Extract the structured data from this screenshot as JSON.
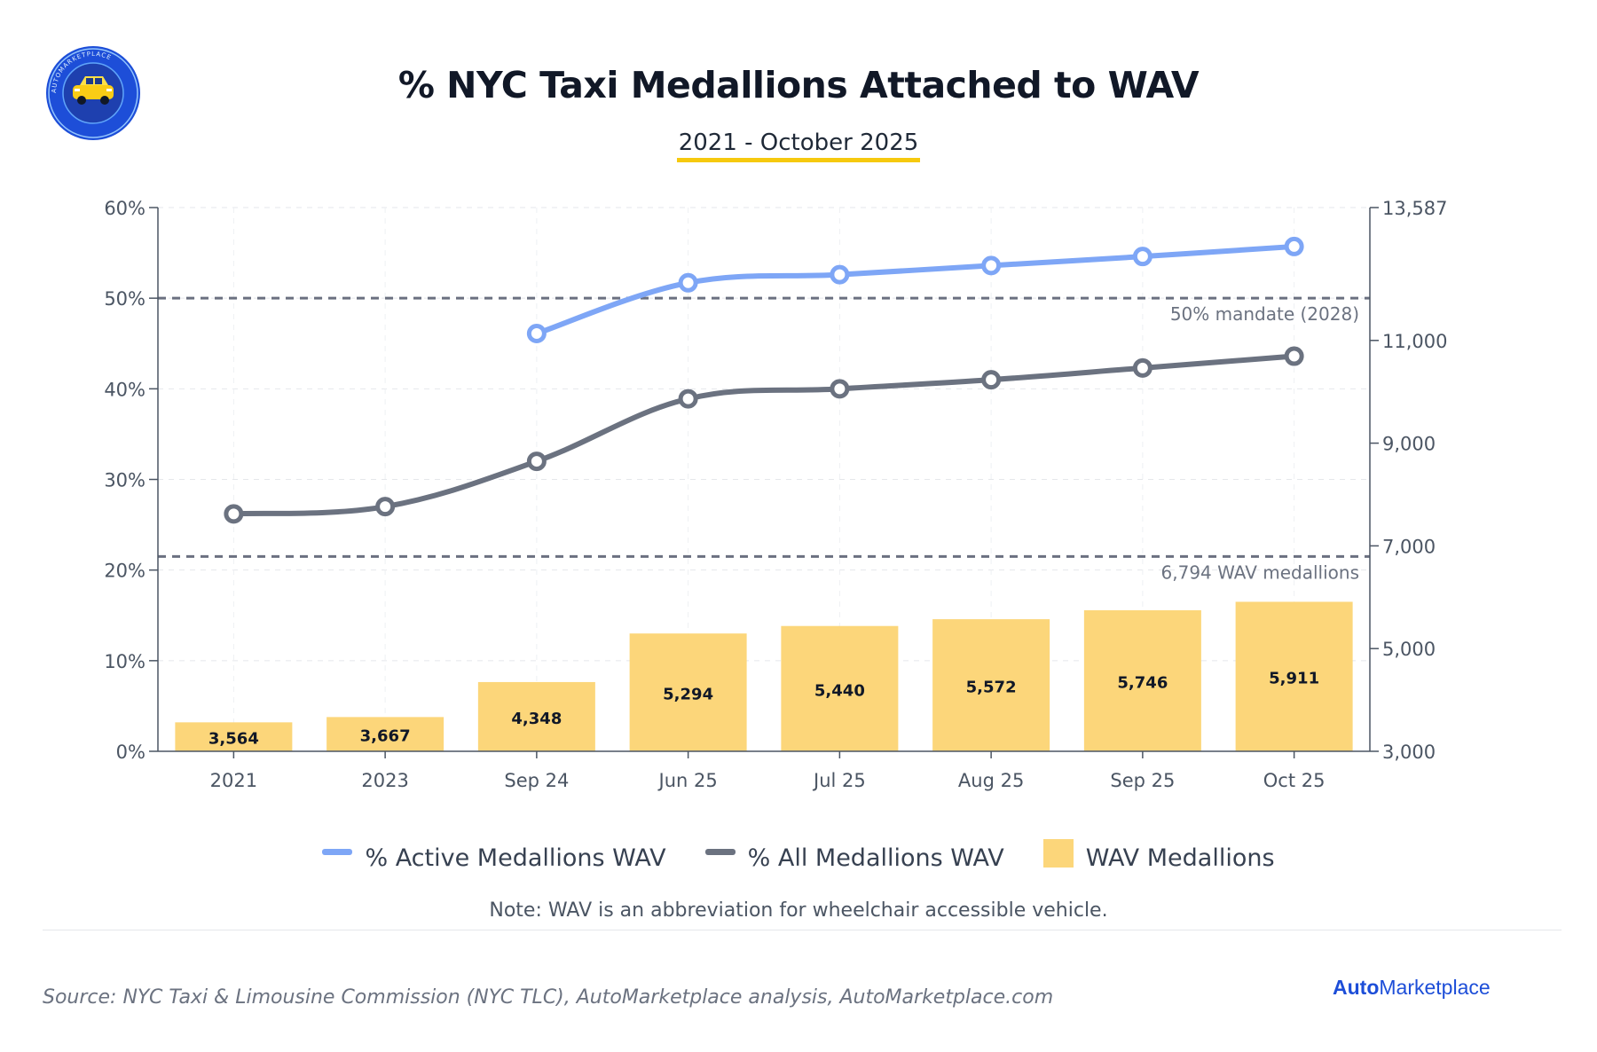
{
  "header": {
    "title": "% NYC Taxi Medallions Attached to WAV",
    "subtitle": "2021 - October 2025",
    "logo_text": "AUTOMARKETPLACE"
  },
  "colors": {
    "active_line": "#7ea6f6",
    "all_line": "#6b7280",
    "bars": "#fcd67a",
    "reference_line": "#6b7080",
    "subtitle_underline": "#f6c90e",
    "brand_blue": "#1d4ed8"
  },
  "chart_data": {
    "type": "bar+line",
    "categories": [
      "2021",
      "2023",
      "Sep 24",
      "Jun 25",
      "Jul 25",
      "Aug 25",
      "Sep 25",
      "Oct 25"
    ],
    "left_axis": {
      "range": [
        0,
        60
      ],
      "ticks": [
        "0%",
        "10%",
        "20%",
        "30%",
        "40%",
        "50%",
        "60%"
      ],
      "tick_values": [
        0,
        10,
        20,
        30,
        40,
        50,
        60
      ]
    },
    "right_axis": {
      "range": [
        3000,
        13587
      ],
      "ticks": [
        "3,000",
        "5,000",
        "7,000",
        "9,000",
        "11,000",
        "13,587"
      ],
      "tick_values": [
        3000,
        5000,
        7000,
        9000,
        11000,
        13587
      ]
    },
    "series": [
      {
        "name": "% Active Medallions WAV",
        "kind": "line",
        "axis": "left",
        "values": [
          null,
          null,
          46.1,
          51.7,
          52.6,
          53.6,
          54.6,
          55.7
        ]
      },
      {
        "name": "% All Medallions WAV",
        "kind": "line",
        "axis": "left",
        "values": [
          26.2,
          27.0,
          32.0,
          38.9,
          40.0,
          41.0,
          42.3,
          43.6
        ]
      },
      {
        "name": "WAV Medallions",
        "kind": "bar",
        "axis": "right",
        "values": [
          3564,
          3667,
          4348,
          5294,
          5440,
          5572,
          5746,
          5911
        ],
        "labels": [
          "3,564",
          "3,667",
          "4,348",
          "5,294",
          "5,440",
          "5,572",
          "5,746",
          "5,911"
        ]
      }
    ],
    "reference_lines": [
      {
        "axis": "left",
        "value": 50,
        "label": "50% mandate (2028)"
      },
      {
        "axis": "right",
        "value": 6794,
        "label": "6,794 WAV medallions"
      }
    ],
    "grid": true,
    "legend_placement": "bottom"
  },
  "legend": [
    {
      "label": "% Active Medallions WAV"
    },
    {
      "label": "% All Medallions WAV"
    },
    {
      "label": "WAV Medallions"
    }
  ],
  "footer": {
    "note": "Note: WAV is an abbreviation for wheelchair accessible vehicle.",
    "source": "Source: NYC Taxi & Limousine Commission (NYC TLC), AutoMarketplace analysis, AutoMarketplace.com",
    "brand_part1": "Auto",
    "brand_part2": "Marketplace"
  }
}
